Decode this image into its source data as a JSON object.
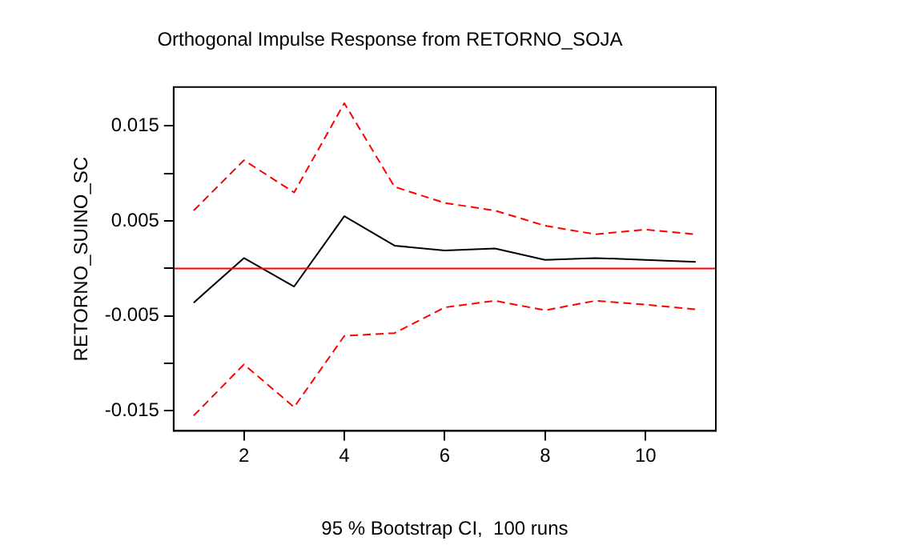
{
  "chart_data": {
    "type": "line",
    "title": "Orthogonal Impulse Response from RETORNO_SOJA",
    "xlabel": "95 % Bootstrap CI,  100 runs",
    "ylabel": "RETORNO_SUINO_SC",
    "x": [
      1,
      2,
      3,
      4,
      5,
      6,
      7,
      8,
      9,
      10,
      11
    ],
    "series": [
      {
        "color": "#000000",
        "line_style": "solid",
        "values": [
          -0.0036,
          0.0011,
          -0.0019,
          0.0055,
          0.0024,
          0.0019,
          0.0021,
          0.0009,
          0.0011,
          0.0009,
          0.0007
        ]
      },
      {
        "color": "#ff0000",
        "line_style": "dashed",
        "values": [
          0.0061,
          0.0114,
          0.008,
          0.0174,
          0.0086,
          0.0069,
          0.0061,
          0.0045,
          0.0036,
          0.0041,
          0.0036
        ]
      },
      {
        "color": "#ff0000",
        "line_style": "dashed",
        "values": [
          -0.0155,
          -0.0101,
          -0.0146,
          -0.0071,
          -0.0068,
          -0.0041,
          -0.0034,
          -0.0044,
          -0.0034,
          -0.0038,
          -0.0043
        ]
      }
    ],
    "xlim": [
      0.6,
      11.4
    ],
    "xticks": [
      2,
      4,
      6,
      8,
      10
    ],
    "ylim": [
      -0.0171,
      0.0191
    ],
    "yticks": [
      -0.015,
      {
        "value": -0.01,
        "label": null
      },
      -0.005,
      {
        "value": 0,
        "label": null
      },
      0.005,
      {
        "value": 0.01,
        "label": null
      },
      0.015
    ],
    "ref_lines": [
      {
        "axis": "y",
        "value": 0,
        "color": "#ff0000"
      }
    ],
    "grid": false,
    "legend": false,
    "marker": "none"
  }
}
